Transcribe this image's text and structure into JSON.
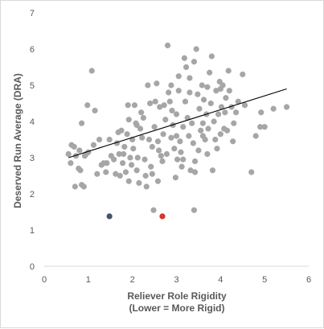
{
  "chart_data": {
    "type": "scatter",
    "title": "",
    "xlabel_line1": "Reliever Role Rigidity",
    "xlabel_line2": "(Lower = More Rigid)",
    "ylabel": "Deserved Run Average (DRA)",
    "xlim": [
      0,
      6
    ],
    "ylim": [
      0,
      7
    ],
    "x_ticks": [
      "0",
      "1",
      "2",
      "3",
      "4",
      "5",
      "6"
    ],
    "y_ticks": [
      "0",
      "1",
      "2",
      "3",
      "4",
      "5",
      "6",
      "7"
    ],
    "grid": false,
    "legend": "none",
    "colors": {
      "points": "#a6a6a6",
      "trendline": "#000000",
      "highlight_dark": "#44546a",
      "highlight_red": "#d9342b",
      "axis": "#d9d9d9",
      "text": "#595959"
    },
    "trendline": {
      "x": [
        0.55,
        5.5
      ],
      "y": [
        3.0,
        4.9
      ]
    },
    "highlighted_points": [
      {
        "x": 1.48,
        "y": 1.38,
        "color": "#44546a"
      },
      {
        "x": 2.68,
        "y": 1.38,
        "color": "#d9342b"
      }
    ],
    "points": [
      [
        0.55,
        3.1
      ],
      [
        0.6,
        2.85
      ],
      [
        0.62,
        3.35
      ],
      [
        0.68,
        3.3
      ],
      [
        0.7,
        2.2
      ],
      [
        0.72,
        3.05
      ],
      [
        0.78,
        2.7
      ],
      [
        0.8,
        3.2
      ],
      [
        0.82,
        2.65
      ],
      [
        0.85,
        3.95
      ],
      [
        0.85,
        2.25
      ],
      [
        0.9,
        2.2
      ],
      [
        0.92,
        3.05
      ],
      [
        0.95,
        3.1
      ],
      [
        0.98,
        4.45
      ],
      [
        1.0,
        3.15
      ],
      [
        1.08,
        5.4
      ],
      [
        1.12,
        3.35
      ],
      [
        1.15,
        4.3
      ],
      [
        1.2,
        2.55
      ],
      [
        1.25,
        3.5
      ],
      [
        1.3,
        2.8
      ],
      [
        1.35,
        2.85
      ],
      [
        1.4,
        2.6
      ],
      [
        1.42,
        2.85
      ],
      [
        1.48,
        3.5
      ],
      [
        1.52,
        3.05
      ],
      [
        1.58,
        2.95
      ],
      [
        1.62,
        2.55
      ],
      [
        1.65,
        3.4
      ],
      [
        1.68,
        3.7
      ],
      [
        1.7,
        3.1
      ],
      [
        1.72,
        2.5
      ],
      [
        1.75,
        3.75
      ],
      [
        1.78,
        2.85
      ],
      [
        1.8,
        3.1
      ],
      [
        1.82,
        3.3
      ],
      [
        1.85,
        2.6
      ],
      [
        1.88,
        3.65
      ],
      [
        1.9,
        4.45
      ],
      [
        1.92,
        4.05
      ],
      [
        1.95,
        3.0
      ],
      [
        1.98,
        2.8
      ],
      [
        2.0,
        3.5
      ],
      [
        2.02,
        3.25
      ],
      [
        2.05,
        4.45
      ],
      [
        2.08,
        3.95
      ],
      [
        2.1,
        2.65
      ],
      [
        2.12,
        3.0
      ],
      [
        2.15,
        2.3
      ],
      [
        2.18,
        3.8
      ],
      [
        2.2,
        4.25
      ],
      [
        2.22,
        3.55
      ],
      [
        2.25,
        4.1
      ],
      [
        2.28,
        2.95
      ],
      [
        2.3,
        2.5
      ],
      [
        2.32,
        2.2
      ],
      [
        2.35,
        5.0
      ],
      [
        2.38,
        3.5
      ],
      [
        2.4,
        4.5
      ],
      [
        2.42,
        2.75
      ],
      [
        2.45,
        2.55
      ],
      [
        2.48,
        1.55
      ],
      [
        2.5,
        3.85
      ],
      [
        2.52,
        4.55
      ],
      [
        2.55,
        5.05
      ],
      [
        2.58,
        3.45
      ],
      [
        2.6,
        3.2
      ],
      [
        2.62,
        4.4
      ],
      [
        2.65,
        3.05
      ],
      [
        2.68,
        2.9
      ],
      [
        2.7,
        3.65
      ],
      [
        2.72,
        4.45
      ],
      [
        2.75,
        4.05
      ],
      [
        2.78,
        3.1
      ],
      [
        2.8,
        6.1
      ],
      [
        2.82,
        4.8
      ],
      [
        2.85,
        4.55
      ],
      [
        2.88,
        3.55
      ],
      [
        2.9,
        4.3
      ],
      [
        2.92,
        3.9
      ],
      [
        2.95,
        3.25
      ],
      [
        2.98,
        2.45
      ],
      [
        3.0,
        4.2
      ],
      [
        3.02,
        2.95
      ],
      [
        3.05,
        5.25
      ],
      [
        3.08,
        3.45
      ],
      [
        3.1,
        3.15
      ],
      [
        3.12,
        2.75
      ],
      [
        3.15,
        3.85
      ],
      [
        3.18,
        5.75
      ],
      [
        3.2,
        4.55
      ],
      [
        3.22,
        5.5
      ],
      [
        3.25,
        4.1
      ],
      [
        3.28,
        3.6
      ],
      [
        3.3,
        5.2
      ],
      [
        3.32,
        2.65
      ],
      [
        3.35,
        3.95
      ],
      [
        3.38,
        3.4
      ],
      [
        3.4,
        5.65
      ],
      [
        3.42,
        2.9
      ],
      [
        3.45,
        6.0
      ],
      [
        3.48,
        4.75
      ],
      [
        3.5,
        3.2
      ],
      [
        3.52,
        4.35
      ],
      [
        3.55,
        3.75
      ],
      [
        3.58,
        5.0
      ],
      [
        3.6,
        3.95
      ],
      [
        3.62,
        4.6
      ],
      [
        3.65,
        3.5
      ],
      [
        3.68,
        4.2
      ],
      [
        3.7,
        3.1
      ],
      [
        3.72,
        3.8
      ],
      [
        3.75,
        5.35
      ],
      [
        3.78,
        4.5
      ],
      [
        3.8,
        5.8
      ],
      [
        3.82,
        2.65
      ],
      [
        3.85,
        4.0
      ],
      [
        3.88,
        3.5
      ],
      [
        3.9,
        4.85
      ],
      [
        3.92,
        3.25
      ],
      [
        3.95,
        4.2
      ],
      [
        3.98,
        5.1
      ],
      [
        4.0,
        3.65
      ],
      [
        4.02,
        4.4
      ],
      [
        4.05,
        5.0
      ],
      [
        4.08,
        3.8
      ],
      [
        4.1,
        4.25
      ],
      [
        4.12,
        4.65
      ],
      [
        4.15,
        3.75
      ],
      [
        4.18,
        5.4
      ],
      [
        4.2,
        4.85
      ],
      [
        4.25,
        4.4
      ],
      [
        4.28,
        3.45
      ],
      [
        4.3,
        3.95
      ],
      [
        4.35,
        4.25
      ],
      [
        4.4,
        4.55
      ],
      [
        4.5,
        5.3
      ],
      [
        4.55,
        4.45
      ],
      [
        4.7,
        2.6
      ],
      [
        4.8,
        3.6
      ],
      [
        4.9,
        3.85
      ],
      [
        4.92,
        4.25
      ],
      [
        5.0,
        3.85
      ],
      [
        5.2,
        4.35
      ],
      [
        5.5,
        4.4
      ],
      [
        3.0,
        3.6
      ],
      [
        3.15,
        2.95
      ],
      [
        2.45,
        3.3
      ],
      [
        3.6,
        3.6
      ],
      [
        3.42,
        2.6
      ],
      [
        3.4,
        1.55
      ],
      [
        4.0,
        4.9
      ],
      [
        3.05,
        4.85
      ],
      [
        2.88,
        5.0
      ],
      [
        3.3,
        4.8
      ],
      [
        1.92,
        2.35
      ],
      [
        2.1,
        3.9
      ],
      [
        2.58,
        2.35
      ],
      [
        3.7,
        4.95
      ]
    ]
  }
}
